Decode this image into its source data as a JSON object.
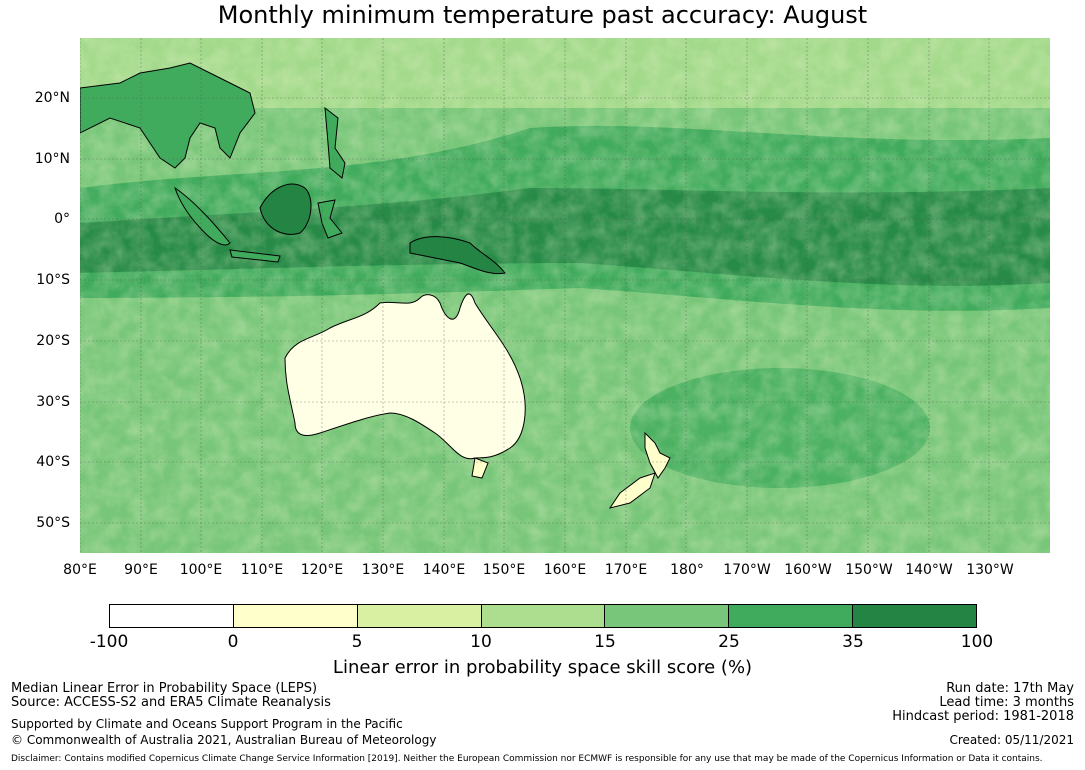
{
  "title": "Monthly minimum temperature past accuracy: August",
  "map": {
    "lat_labels": [
      "20°N",
      "10°N",
      "0°",
      "10°S",
      "20°S",
      "30°S",
      "40°S",
      "50°S"
    ],
    "lon_labels": [
      "80°E",
      "90°E",
      "100°E",
      "110°E",
      "120°E",
      "130°E",
      "140°E",
      "150°E",
      "160°E",
      "170°E",
      "180°",
      "170°W",
      "160°W",
      "150°W",
      "140°W",
      "130°W"
    ],
    "ocean_color": "#7fc57c",
    "land_outline_color": "#000000"
  },
  "colorbar": {
    "ticks": [
      "-100",
      "0",
      "5",
      "10",
      "15",
      "25",
      "35",
      "100"
    ],
    "colors": [
      "#ffffff",
      "#ffffcc",
      "#d9f0a3",
      "#addd8e",
      "#78c679",
      "#41ab5d",
      "#238443"
    ],
    "label": "Linear error in probability space skill score (%)"
  },
  "footer": {
    "left_line1": "Median Linear Error in Probability Space (LEPS)",
    "left_line2": "Source: ACCESS-S2 and ERA5 Climate Reanalysis",
    "left_line3": "Supported by Climate and Oceans Support Program in the Pacific",
    "left_line4": "© Commonwealth of Australia 2021, Australian Bureau of Meteorology",
    "right_line1": "Run date: 17th May",
    "right_line2": "Lead time: 3 months",
    "right_line3": "Hindcast period: 1981-2018",
    "right_line4": "Created: 05/11/2021",
    "disclaimer": "Disclaimer: Contains modified Copernicus Climate Change Service Information [2019]. Neither the European Commission nor ECMWF is responsible for any use that may be made of the Copernicus Information or Data it contains."
  }
}
